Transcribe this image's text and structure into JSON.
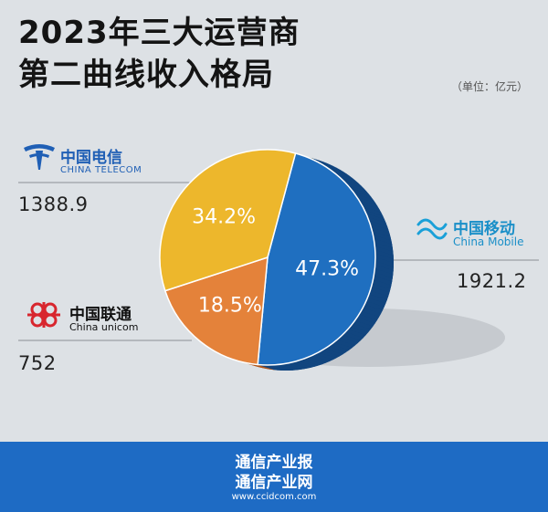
{
  "title_lines": [
    "2023年三大运营商",
    "第二曲线收入格局"
  ],
  "unit": "（单位：亿元）",
  "chart_data": {
    "type": "pie",
    "title": "2023年三大运营商第二曲线收入格局",
    "unit": "亿元",
    "slices": [
      {
        "name_cn": "中国移动",
        "name_en": "China Mobile",
        "value": 1921.2,
        "value_label": "1921.2",
        "percent_label": "47.3%",
        "color": "#1f6fc0",
        "side_color": "#11457f"
      },
      {
        "name_cn": "中国联通",
        "name_en": "China unicom",
        "value": 752,
        "value_label": "752",
        "percent_label": "18.5%",
        "color": "#e4823a",
        "side_color": "#b0551a"
      },
      {
        "name_cn": "中国电信",
        "name_en": "CHINA TELECOM",
        "value": 1388.9,
        "value_label": "1388.9",
        "percent_label": "34.2%",
        "color": "#edb72c",
        "side_color": "#b98612"
      }
    ],
    "legend": "none",
    "grid": false
  },
  "brand_colors": {
    "telecom": "#1f5fb5",
    "unicom": "#d8262e",
    "mobile": "#1aa0d8"
  },
  "footer": {
    "line1": "通信产业报",
    "line2": "通信产业网",
    "url": "www.ccidcom.com"
  }
}
